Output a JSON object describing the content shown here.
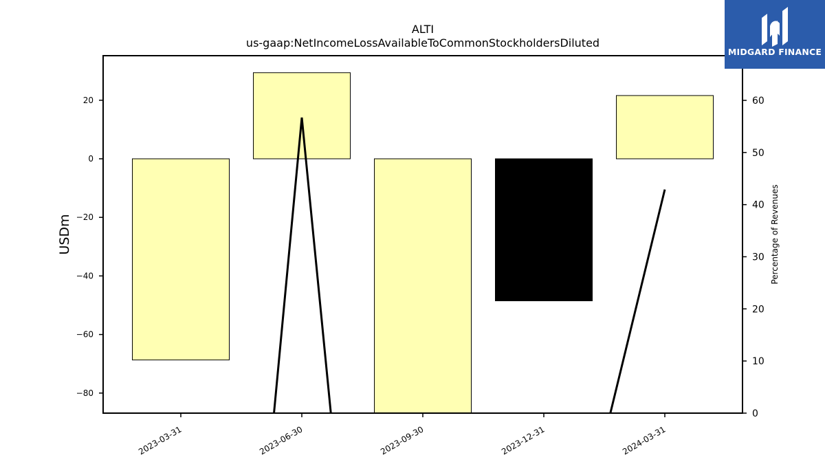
{
  "chart_data": {
    "type": "bar",
    "title": "ALTI",
    "subtitle": "us-gaap:NetIncomeLossAvailableToCommonStockholdersDiluted",
    "ylabel": "USDm",
    "y2label": "Percentage of Revenues",
    "categories": [
      "2023-03-31",
      "2023-06-30",
      "2023-09-30",
      "2023-12-31",
      "2024-03-31"
    ],
    "values": [
      -68.7,
      29.4,
      -87,
      -48.5,
      21.6
    ],
    "bar_colors": [
      "#ffffb3",
      "#ffffb3",
      "#ffffb3",
      "#000000",
      "#ffffb3"
    ],
    "ylim": [
      -87,
      35
    ],
    "yticks": [
      -80,
      -60,
      -40,
      -20,
      0,
      20
    ],
    "line_series": {
      "axis": "right",
      "points": [
        {
          "x": "2023-06-30",
          "y": 56.7
        },
        {
          "x": "2024-03-31",
          "y": 42.9
        }
      ],
      "segments_from_below": [
        {
          "from_index": 0.77,
          "to": 1
        },
        {
          "from": 1,
          "to_index": 1.24
        },
        {
          "from_index": 3.55,
          "to": 4
        }
      ]
    },
    "y2lim": [
      0,
      69
    ],
    "y2ticks": [
      0,
      10,
      20,
      30,
      40,
      50,
      60
    ],
    "grid": false,
    "legend": "none"
  },
  "branding": {
    "logo_text": "MIDGARD FINANCE",
    "background": "#2b5cab"
  }
}
